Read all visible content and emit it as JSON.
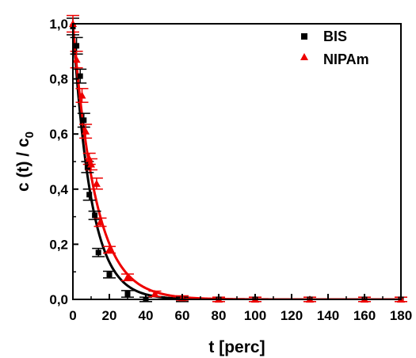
{
  "chart_data": {
    "type": "scatter",
    "xlabel": "t [perc]",
    "ylabel": "c (t) / c",
    "ylabel_subscript": "0",
    "xlim": [
      0,
      180
    ],
    "ylim": [
      0,
      1.0
    ],
    "x_ticks": [
      0,
      20,
      40,
      60,
      80,
      100,
      120,
      140,
      160,
      180
    ],
    "x_tick_labels": [
      "0",
      "20",
      "40",
      "60",
      "80",
      "100",
      "120",
      "140",
      "160",
      "180"
    ],
    "y_ticks": [
      0,
      0.2,
      0.4,
      0.6,
      0.8,
      1.0
    ],
    "y_tick_labels": [
      "0,0",
      "0,2",
      "0,4",
      "0,6",
      "0,8",
      "1,0"
    ],
    "legend_position": "top-right",
    "grid": false,
    "series": [
      {
        "name": "BIS",
        "color": "#000000",
        "marker": "square",
        "points": [
          {
            "x": 0,
            "y": 0.99,
            "err": 0.03
          },
          {
            "x": 2,
            "y": 0.92,
            "err": 0.03
          },
          {
            "x": 4,
            "y": 0.81,
            "err": 0.025
          },
          {
            "x": 6,
            "y": 0.65,
            "err": 0.025
          },
          {
            "x": 8,
            "y": 0.48,
            "err": 0.02
          },
          {
            "x": 9,
            "y": 0.38,
            "err": 0.02
          },
          {
            "x": 12,
            "y": 0.305,
            "err": 0.015
          },
          {
            "x": 14,
            "y": 0.17,
            "err": 0.015
          },
          {
            "x": 20,
            "y": 0.09,
            "err": 0.012
          },
          {
            "x": 30,
            "y": 0.02,
            "err": 0.012
          },
          {
            "x": 40,
            "y": 0.0,
            "err": 0.008
          },
          {
            "x": 60,
            "y": 0.0,
            "err": 0.008
          },
          {
            "x": 80,
            "y": 0.0,
            "err": 0.008
          },
          {
            "x": 100,
            "y": 0.0,
            "err": 0.008
          },
          {
            "x": 130,
            "y": 0.0,
            "err": 0.008
          },
          {
            "x": 160,
            "y": 0.0,
            "err": 0.008
          },
          {
            "x": 180,
            "y": 0.0,
            "err": 0.008
          }
        ],
        "fit_k": 0.1
      },
      {
        "name": "NIPAm",
        "color": "#ee0000",
        "marker": "triangle",
        "points": [
          {
            "x": 0,
            "y": 1.0,
            "err": 0.03
          },
          {
            "x": 2,
            "y": 0.87,
            "err": 0.03
          },
          {
            "x": 5,
            "y": 0.74,
            "err": 0.025
          },
          {
            "x": 7,
            "y": 0.61,
            "err": 0.025
          },
          {
            "x": 9,
            "y": 0.51,
            "err": 0.02
          },
          {
            "x": 10,
            "y": 0.49,
            "err": 0.02
          },
          {
            "x": 13,
            "y": 0.42,
            "err": 0.02
          },
          {
            "x": 15,
            "y": 0.28,
            "err": 0.015
          },
          {
            "x": 20,
            "y": 0.18,
            "err": 0.012
          },
          {
            "x": 30,
            "y": 0.08,
            "err": 0.012
          },
          {
            "x": 45,
            "y": 0.02,
            "err": 0.01
          },
          {
            "x": 60,
            "y": 0.005,
            "err": 0.008
          },
          {
            "x": 80,
            "y": 0.0,
            "err": 0.008
          },
          {
            "x": 100,
            "y": 0.0,
            "err": 0.008
          },
          {
            "x": 130,
            "y": 0.0,
            "err": 0.008
          },
          {
            "x": 160,
            "y": 0.0,
            "err": 0.008
          },
          {
            "x": 180,
            "y": 0.0,
            "err": 0.008
          }
        ],
        "fit_k": 0.08
      }
    ]
  }
}
